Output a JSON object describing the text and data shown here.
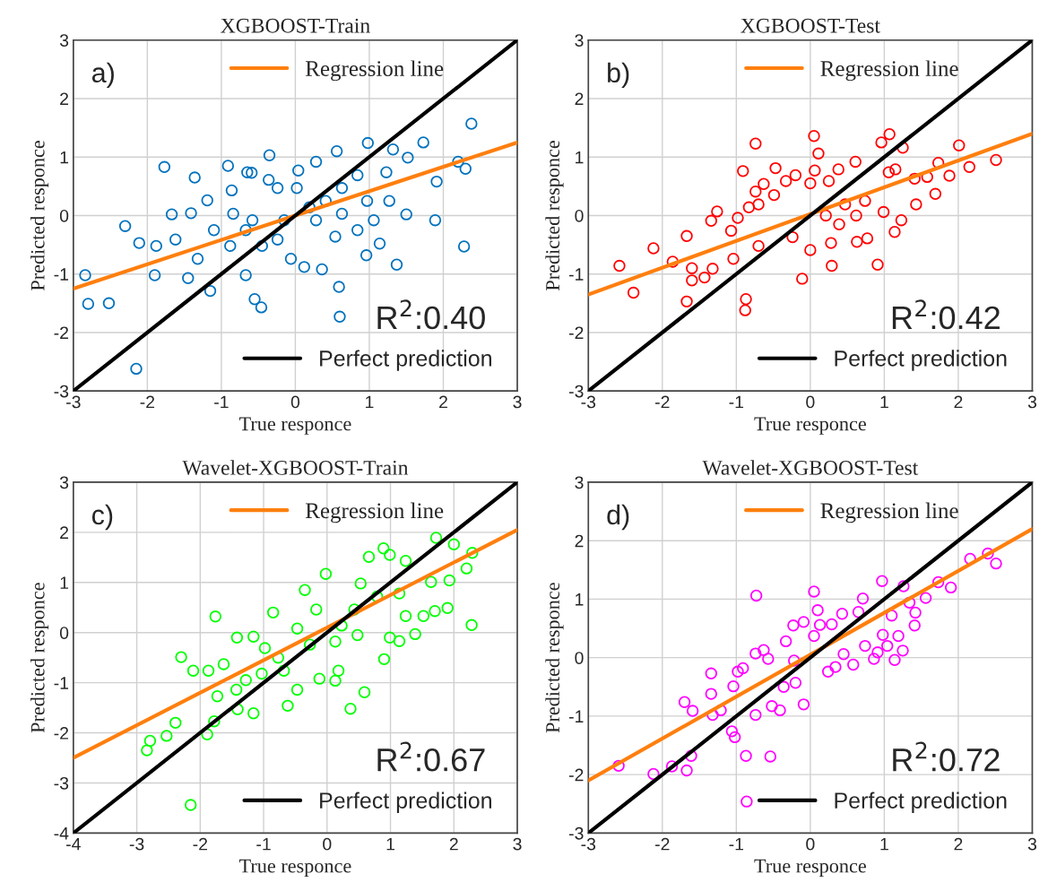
{
  "chart_data": [
    {
      "type": "scatter",
      "title": "XGBOOST-Train",
      "xlabel": "True responce",
      "ylabel": "Predicted responce",
      "annotations": [
        "a)",
        "R$^{2}$:0.40"
      ],
      "xlim": [
        -3,
        3
      ],
      "ylim": [
        -3,
        3
      ],
      "xticks": [
        -3,
        -2,
        -1,
        0,
        1,
        2,
        3
      ],
      "yticks": [
        -3,
        -2,
        -1,
        0,
        1,
        2,
        3
      ],
      "grid": true,
      "legend": "right",
      "series": [
        {
          "marker": "circle",
          "color": "#0072bd",
          "x": [
            -2.84,
            -2.8,
            -2.52,
            -2.3,
            -2.11,
            -2.15,
            -1.88,
            -1.77,
            -1.67,
            -1.9,
            -1.36,
            -1.41,
            -1.19,
            -1.15,
            -0.91,
            -0.86,
            -0.65,
            -0.59,
            -0.35,
            -0.55,
            -0.46,
            -0.67,
            -0.36,
            0.04,
            0.28,
            0.56,
            0.59,
            0.6,
            0.36,
            0.12,
            0.98,
            0.96,
            1.37,
            1.14,
            1.5,
            1.52,
            1.73,
            1.89,
            1.91,
            2.2,
            2.3,
            2.28,
            2.38,
            1.32,
            1.23,
            0.84,
            0.63,
            0.41,
            0.19,
            -0.15,
            -0.24,
            -0.45,
            -0.67,
            -0.88,
            -1.1,
            -1.32,
            -1.45,
            -1.62,
            -0.84,
            -0.58,
            0.84,
            1.06,
            1.27,
            0.63,
            0.97,
            0.54,
            -0.06,
            0.28,
            0.02,
            -0.24
          ],
          "values": [
            -1.02,
            -1.51,
            -1.5,
            -0.18,
            -0.47,
            -2.62,
            -0.52,
            0.83,
            0.02,
            -1.02,
            0.65,
            0.04,
            0.26,
            -1.29,
            0.85,
            0.43,
            0.74,
            0.73,
            1.03,
            -1.43,
            -1.57,
            -1.02,
            0.61,
            0.77,
            0.92,
            1.1,
            -1.22,
            -1.73,
            -0.92,
            -0.88,
            1.24,
            -0.68,
            -0.84,
            -0.48,
            0.02,
            0.99,
            1.25,
            -0.08,
            0.58,
            0.92,
            0.8,
            -0.53,
            1.57,
            1.13,
            0.74,
            0.69,
            0.47,
            0.25,
            0.14,
            -0.08,
            -0.41,
            -0.52,
            -0.25,
            -0.52,
            -0.25,
            -0.74,
            -1.07,
            -0.41,
            0.03,
            -0.08,
            -0.25,
            -0.08,
            0.25,
            0.03,
            0.25,
            -0.36,
            -0.74,
            -0.08,
            0.47,
            0.47
          ]
        },
        {
          "type": "line",
          "name": "Regression line",
          "color": "#ff7f0e",
          "x": [
            -3,
            3
          ],
          "values": [
            -1.25,
            1.25
          ]
        },
        {
          "type": "line",
          "name": "Perfect prediction",
          "color": "#000000",
          "x": [
            -3,
            3
          ],
          "values": [
            -3,
            3
          ]
        }
      ]
    },
    {
      "type": "scatter",
      "title": "XGBOOST-Test",
      "xlabel": "True responce",
      "ylabel": "Predicted responce",
      "annotations": [
        "b)",
        "R$^{2}$:0.42"
      ],
      "xlim": [
        -3,
        3
      ],
      "ylim": [
        -3,
        3
      ],
      "xticks": [
        -3,
        -2,
        -1,
        0,
        1,
        2,
        3
      ],
      "yticks": [
        -3,
        -2,
        -1,
        0,
        1,
        2,
        3
      ],
      "grid": true,
      "legend": "right",
      "series": [
        {
          "marker": "circle",
          "color": "#ff0000",
          "x": [
            -2.58,
            -2.39,
            -2.12,
            -1.86,
            -1.67,
            -1.67,
            -1.6,
            -1.6,
            -1.43,
            -1.34,
            -1.26,
            -1.32,
            -1.07,
            -0.98,
            -1.04,
            -0.91,
            -0.87,
            -0.88,
            -0.74,
            -0.83,
            -0.7,
            -0.63,
            -0.74,
            -0.7,
            -0.47,
            -0.49,
            -0.33,
            -0.2,
            -0.24,
            -0.11,
            0.0,
            0.05,
            0.11,
            0.06,
            0.0,
            0.21,
            0.25,
            0.29,
            0.28,
            0.38,
            0.39,
            0.61,
            0.63,
            0.62,
            0.74,
            0.77,
            0.91,
            0.96,
            1.07,
            0.99,
            1.06,
            1.14,
            1.25,
            1.23,
            1.43,
            1.41,
            1.69,
            1.73,
            1.88,
            2.01,
            2.15,
            2.51,
            1.58,
            1.15,
            0.47
          ],
          "values": [
            -0.86,
            -1.32,
            -0.56,
            -0.79,
            -0.35,
            -1.47,
            -0.9,
            -1.11,
            -1.06,
            -0.09,
            0.07,
            -0.91,
            -0.26,
            -0.04,
            -0.74,
            0.76,
            -1.43,
            -1.62,
            1.23,
            0.14,
            0.19,
            0.54,
            0.41,
            -0.52,
            0.81,
            0.35,
            0.59,
            0.69,
            -0.37,
            -1.08,
            -0.59,
            1.36,
            1.06,
            0.77,
            0.55,
            0.0,
            0.59,
            -0.86,
            -0.47,
            0.79,
            -0.15,
            0.92,
            -0.45,
            0.0,
            0.25,
            -0.39,
            -0.84,
            1.25,
            1.39,
            0.06,
            0.74,
            -0.28,
            1.16,
            -0.08,
            0.19,
            0.63,
            0.37,
            0.9,
            0.68,
            1.2,
            0.83,
            0.95,
            0.66,
            0.79,
            0.19
          ]
        },
        {
          "type": "line",
          "name": "Regression line",
          "color": "#ff7f0e",
          "x": [
            -3,
            3
          ],
          "values": [
            -1.35,
            1.4
          ]
        },
        {
          "type": "line",
          "name": "Perfect prediction",
          "color": "#000000",
          "x": [
            -3,
            3
          ],
          "values": [
            -3,
            3
          ]
        }
      ]
    },
    {
      "type": "scatter",
      "title": "Wavelet-XGBOOST-Train",
      "xlabel": "True responce",
      "ylabel": "Predicted responce",
      "annotations": [
        "c)",
        "R$^{2}$:0.67"
      ],
      "xlim": [
        -4,
        3
      ],
      "ylim": [
        -4,
        3
      ],
      "xticks": [
        -4,
        -3,
        -2,
        -1,
        0,
        1,
        2,
        3
      ],
      "yticks": [
        -4,
        -3,
        -2,
        -1,
        0,
        1,
        2,
        3
      ],
      "grid": true,
      "legend": "right",
      "series": [
        {
          "marker": "circle",
          "color": "#00ff00",
          "x": [
            -2.84,
            -2.79,
            -2.53,
            -2.39,
            -2.3,
            -2.11,
            -2.15,
            -1.89,
            -1.87,
            -1.78,
            -1.76,
            -1.73,
            -1.63,
            -1.42,
            -1.41,
            -1.16,
            -1.16,
            -1.28,
            -0.85,
            -0.62,
            -0.35,
            -0.47,
            -0.77,
            -0.47,
            -0.02,
            -0.12,
            0.13,
            0.18,
            0.37,
            0.59,
            0.66,
            0.53,
            0.43,
            0.23,
            0.89,
            0.9,
            0.99,
            1.14,
            1.39,
            1.52,
            1.64,
            1.72,
            1.7,
            1.9,
            1.93,
            2.0,
            2.2,
            2.29,
            2.28,
            0.99,
            1.24,
            1.14,
            0.79,
            -0.17,
            -0.27,
            -0.68,
            -1.03,
            -1.43,
            -0.98,
            0.13,
            0.48,
            1.24
          ],
          "values": [
            -2.35,
            -2.16,
            -2.06,
            -1.8,
            -0.49,
            -0.76,
            -3.44,
            -2.03,
            -0.76,
            -1.77,
            0.32,
            -1.27,
            -0.63,
            -0.1,
            -1.53,
            -1.61,
            -0.08,
            -0.95,
            0.4,
            -1.46,
            0.85,
            0.08,
            -0.5,
            -1.14,
            1.17,
            -0.92,
            -0.96,
            -0.76,
            -1.52,
            -1.19,
            1.51,
            0.98,
            0.46,
            0.14,
            1.68,
            -0.53,
            -0.1,
            -0.17,
            -0.03,
            0.33,
            1.01,
            1.89,
            0.43,
            0.49,
            1.04,
            1.76,
            1.28,
            1.59,
            0.15,
            1.55,
            1.43,
            0.78,
            0.72,
            0.46,
            -0.24,
            -0.76,
            -0.82,
            -1.14,
            -0.31,
            -0.18,
            -0.05,
            0.33
          ]
        },
        {
          "type": "line",
          "name": "Regression line",
          "color": "#ff7f0e",
          "x": [
            -4,
            3
          ],
          "values": [
            -2.5,
            2.05
          ]
        },
        {
          "type": "line",
          "name": "Perfect prediction",
          "color": "#000000",
          "x": [
            -4,
            3
          ],
          "values": [
            -4,
            3
          ]
        }
      ]
    },
    {
      "type": "scatter",
      "title": "Wavelet-XGBOOST-Test",
      "xlabel": "True responce",
      "ylabel": "Predicted responce",
      "annotations": [
        "d)",
        "R$^{2}$:0.72"
      ],
      "xlim": [
        -3,
        3
      ],
      "ylim": [
        -3,
        3
      ],
      "xticks": [
        -3,
        -2,
        -1,
        0,
        1,
        2,
        3
      ],
      "yticks": [
        -3,
        -2,
        -1,
        0,
        1,
        2,
        3
      ],
      "grid": true,
      "legend": "right",
      "series": [
        {
          "marker": "circle",
          "color": "#ff00ff",
          "x": [
            -2.59,
            -2.12,
            -1.87,
            -1.67,
            -1.61,
            -1.7,
            -1.59,
            -1.34,
            -1.34,
            -1.32,
            -1.21,
            -1.04,
            -1.06,
            -1.02,
            -0.98,
            -0.87,
            -0.91,
            -0.73,
            -0.74,
            -0.63,
            -0.74,
            -0.52,
            -0.54,
            -0.57,
            -0.41,
            -0.36,
            -0.33,
            -0.23,
            -0.22,
            -0.2,
            -0.09,
            -0.09,
            0.05,
            0.1,
            0.05,
            0.13,
            0.24,
            0.29,
            0.43,
            0.34,
            0.45,
            0.58,
            0.65,
            0.71,
            0.74,
            0.86,
            0.91,
            0.97,
            0.98,
            1.04,
            1.1,
            1.14,
            1.19,
            1.25,
            1.26,
            1.34,
            1.41,
            1.42,
            1.56,
            1.73,
            1.9,
            2.16,
            2.4,
            2.51,
            -0.86
          ],
          "values": [
            -1.85,
            -1.99,
            -1.86,
            -1.93,
            -1.68,
            -0.76,
            -0.91,
            -0.27,
            -0.62,
            -0.98,
            -0.9,
            -0.49,
            -1.26,
            -1.36,
            -0.24,
            -1.68,
            -0.18,
            1.06,
            0.07,
            0.13,
            -0.98,
            -0.83,
            -1.69,
            -0.02,
            -0.9,
            -0.5,
            0.28,
            0.55,
            -0.05,
            -0.43,
            -0.8,
            0.61,
            1.13,
            0.81,
            0.37,
            0.56,
            -0.24,
            0.57,
            0.75,
            -0.16,
            0.06,
            -0.12,
            0.78,
            1.01,
            0.2,
            -0.02,
            0.09,
            1.31,
            0.39,
            0.2,
            0.72,
            -0.04,
            0.37,
            0.12,
            1.22,
            0.94,
            0.55,
            0.77,
            1.02,
            1.29,
            1.2,
            1.69,
            1.78,
            1.61,
            -2.46
          ]
        },
        {
          "type": "line",
          "name": "Regression line",
          "color": "#ff7f0e",
          "x": [
            -3,
            3
          ],
          "values": [
            -2.1,
            2.2
          ]
        },
        {
          "type": "line",
          "name": "Perfect prediction",
          "color": "#000000",
          "x": [
            -3,
            3
          ],
          "values": [
            -3,
            3
          ]
        }
      ]
    }
  ]
}
